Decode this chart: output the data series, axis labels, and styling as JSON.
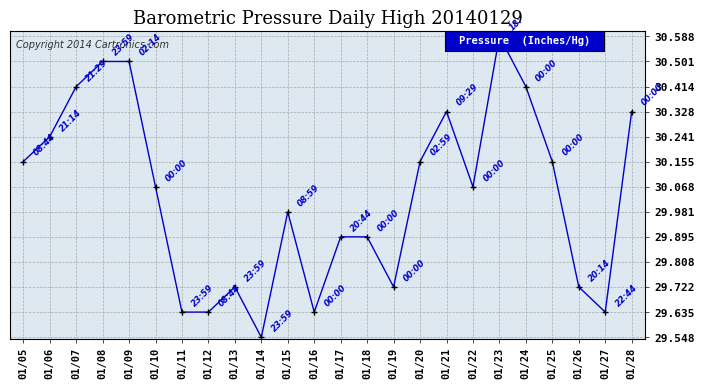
{
  "title": "Barometric Pressure Daily High 20140129",
  "copyright": "Copyright 2014 Cartronics.com",
  "legend_label": "Pressure  (Inches/Hg)",
  "dates": [
    "01/05",
    "01/06",
    "01/07",
    "01/08",
    "01/09",
    "01/10",
    "01/11",
    "01/12",
    "01/13",
    "01/14",
    "01/15",
    "01/16",
    "01/17",
    "01/18",
    "01/19",
    "01/20",
    "01/21",
    "01/22",
    "01/23",
    "01/24",
    "01/25",
    "01/26",
    "01/27",
    "01/28"
  ],
  "values": [
    30.155,
    30.241,
    30.414,
    30.501,
    30.501,
    30.068,
    29.635,
    29.635,
    29.722,
    29.548,
    29.981,
    29.635,
    29.895,
    29.895,
    29.722,
    30.155,
    30.328,
    30.068,
    30.588,
    30.414,
    30.155,
    29.722,
    29.635,
    30.328
  ],
  "time_labels": [
    "08:44",
    "21:14",
    "21:29",
    "23:59",
    "02:14",
    "00:00",
    "23:59",
    "08:44",
    "23:59",
    "23:59",
    "08:59",
    "00:00",
    "20:44",
    "00:00",
    "00:00",
    "02:59",
    "09:29",
    "00:00",
    "18:",
    "00:00",
    "00:00",
    "20:14",
    "22:44",
    "00:00"
  ],
  "ylim_min": 29.548,
  "ylim_max": 30.588,
  "yticks": [
    29.548,
    29.635,
    29.722,
    29.808,
    29.895,
    29.981,
    30.068,
    30.155,
    30.241,
    30.328,
    30.414,
    30.501,
    30.588
  ],
  "line_color": "#0000cc",
  "background_color": "#dde8f0",
  "title_fontsize": 13,
  "legend_bg": "#0000cc",
  "legend_fg": "#ffffff"
}
